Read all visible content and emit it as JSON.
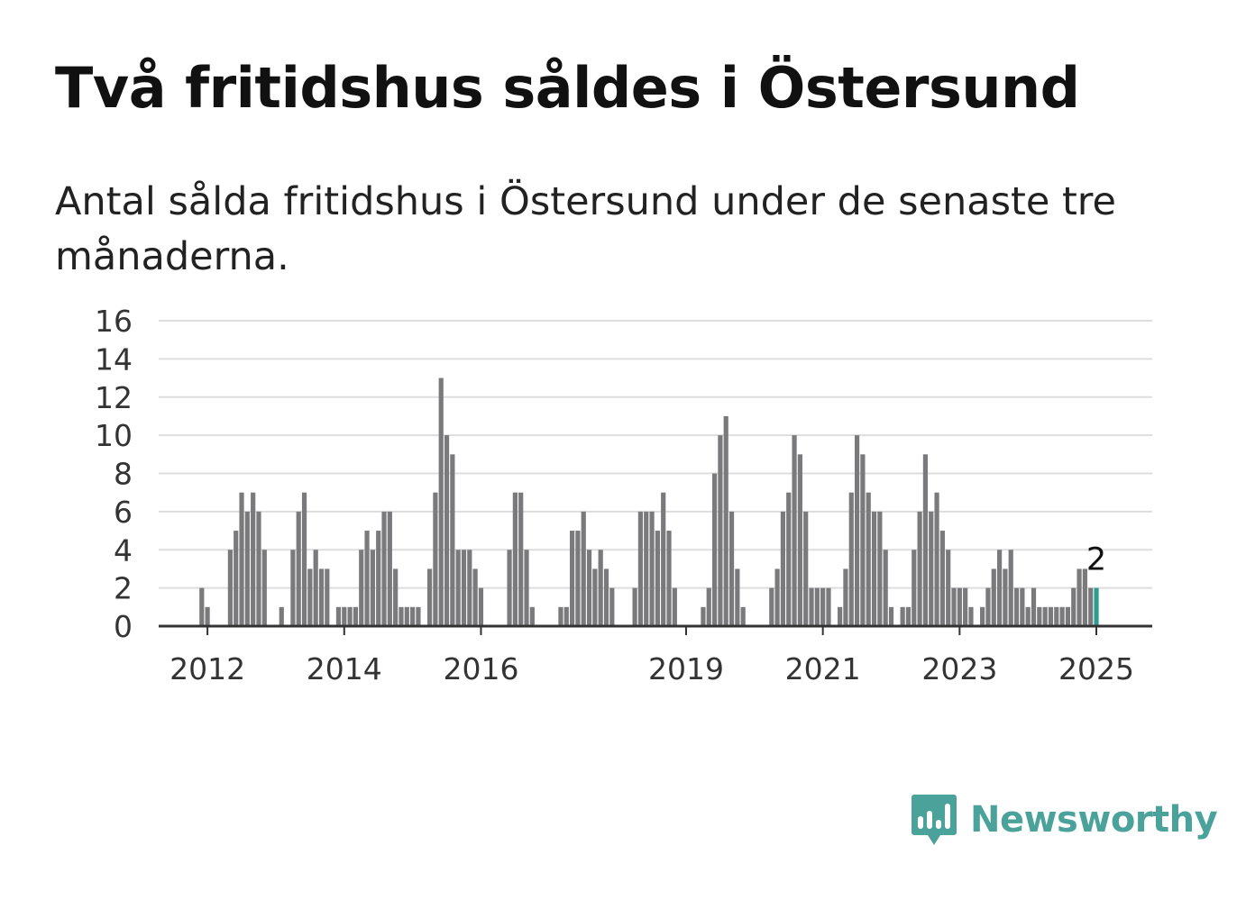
{
  "header": {
    "title": "Två fritidshus såldes i Östersund",
    "subtitle": "Antal sålda fritidshus i Östersund under de senaste tre månaderna."
  },
  "brand": {
    "name": "Newsworthy",
    "logo_icon": "bar-chart-speech-bubble-icon",
    "color": "#4ba29a"
  },
  "colors": {
    "bar": "#7a7a7d",
    "highlight": "#2a9d8f",
    "grid": "#dddddd",
    "axis": "#333333"
  },
  "chart_data": {
    "type": "bar",
    "title": "Två fritidshus såldes i Östersund",
    "subtitle": "Antal sålda fritidshus i Östersund under de senaste tre månaderna.",
    "xlabel": "",
    "ylabel": "",
    "ylim": [
      0,
      16
    ],
    "yticks": [
      0,
      2,
      4,
      6,
      8,
      10,
      12,
      14,
      16
    ],
    "xticks": [
      "2012",
      "2014",
      "2016",
      "2019",
      "2021",
      "2023",
      "2025"
    ],
    "grid": true,
    "start": "2011-10",
    "frequency": "monthly",
    "values": [
      0,
      0,
      2,
      1,
      0,
      0,
      0,
      4,
      5,
      7,
      6,
      7,
      6,
      4,
      0,
      0,
      1,
      0,
      4,
      6,
      7,
      3,
      4,
      3,
      3,
      0,
      1,
      1,
      1,
      1,
      4,
      5,
      4,
      5,
      6,
      6,
      3,
      1,
      1,
      1,
      1,
      0,
      3,
      7,
      13,
      10,
      9,
      4,
      4,
      4,
      3,
      2,
      0,
      0,
      0,
      0,
      4,
      7,
      7,
      4,
      1,
      0,
      0,
      0,
      0,
      1,
      1,
      5,
      5,
      6,
      4,
      3,
      4,
      3,
      2,
      0,
      0,
      0,
      2,
      6,
      6,
      6,
      5,
      7,
      5,
      2,
      0,
      0,
      0,
      0,
      1,
      2,
      8,
      10,
      11,
      6,
      3,
      1,
      0,
      0,
      0,
      0,
      2,
      3,
      6,
      7,
      10,
      9,
      6,
      2,
      2,
      2,
      2,
      0,
      1,
      3,
      7,
      10,
      9,
      7,
      6,
      6,
      4,
      1,
      0,
      1,
      1,
      4,
      6,
      9,
      6,
      7,
      5,
      4,
      2,
      2,
      2,
      1,
      0,
      1,
      2,
      3,
      4,
      3,
      4,
      2,
      2,
      1,
      2,
      1,
      1,
      1,
      1,
      1,
      1,
      2,
      3,
      3,
      2,
      2
    ],
    "highlight": {
      "label": "2",
      "value": 2
    }
  }
}
